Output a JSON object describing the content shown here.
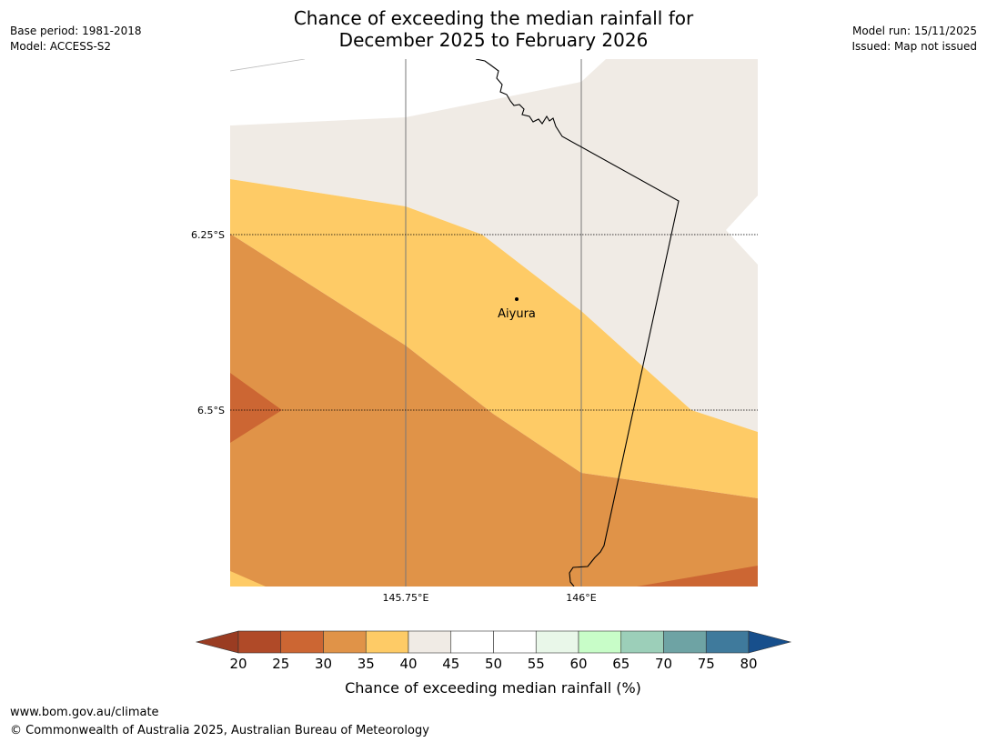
{
  "title": {
    "line1": "Chance of exceeding the median rainfall for",
    "line2": "December 2025 to February 2026"
  },
  "meta_left": {
    "base_period": "Base period: 1981-2018",
    "model": "Model: ACCESS-S2"
  },
  "meta_right": {
    "model_run": "Model run: 15/11/2025",
    "issued": "Issued: Map not issued"
  },
  "map": {
    "lat_labels": [
      "6.25°S",
      "6.5°S"
    ],
    "lon_labels": [
      "145.75°E",
      "146°E"
    ],
    "place": "Aiyura",
    "colors": {
      "band_25_30": "#cc6633",
      "band_30_35": "#e09348",
      "band_35_40": "#fecb66",
      "band_40_45": "#f0ebe5"
    }
  },
  "colorbar": {
    "label": "Chance of exceeding median rainfall (%)",
    "ticks": [
      "20",
      "25",
      "30",
      "35",
      "40",
      "45",
      "50",
      "55",
      "60",
      "65",
      "70",
      "75",
      "80"
    ],
    "under_color": "#9a3c22",
    "over_color": "#174f8c",
    "segment_colors": [
      "#b04a28",
      "#cc6633",
      "#e09348",
      "#fecb66",
      "#f0ebe5",
      "#ffffff",
      "#ffffff",
      "#e9f7e9",
      "#c8fdc8",
      "#9ccfb9",
      "#6ea3a4",
      "#3f7a9c"
    ]
  },
  "footer": {
    "url": "www.bom.gov.au/climate",
    "copyright": "© Commonwealth of Australia 2025, Australian Bureau of Meteorology"
  }
}
